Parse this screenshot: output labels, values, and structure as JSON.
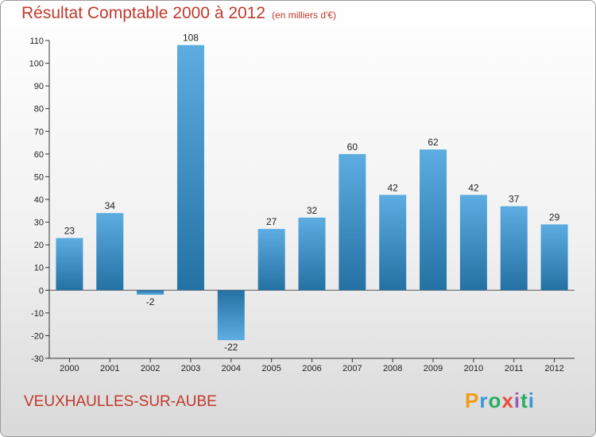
{
  "header": {
    "title": "Résultat Comptable 2000 à 2012",
    "unit": "(en milliers d'€)"
  },
  "commune": "VEUXHAULLES-SUR-AUBE",
  "brand": {
    "logo_text": "Proxiti"
  },
  "colors": {
    "title": "#c0392b",
    "bar_top": "#5dade2",
    "bar_bottom": "#2471a3"
  },
  "chart_data": {
    "type": "bar",
    "title": "Résultat Comptable 2000 à 2012",
    "ylabel": "en milliers d'€",
    "xlabel": "",
    "categories": [
      "2000",
      "2001",
      "2002",
      "2003",
      "2004",
      "2005",
      "2006",
      "2007",
      "2008",
      "2009",
      "2010",
      "2011",
      "2012"
    ],
    "values": [
      23,
      34,
      -2,
      108,
      -22,
      27,
      32,
      60,
      42,
      62,
      42,
      37,
      29
    ],
    "ylim": [
      -30,
      110
    ],
    "yticks": [
      -30,
      -20,
      -10,
      0,
      10,
      20,
      30,
      40,
      50,
      60,
      70,
      80,
      90,
      100,
      110
    ],
    "grid": false,
    "legend": "none"
  }
}
